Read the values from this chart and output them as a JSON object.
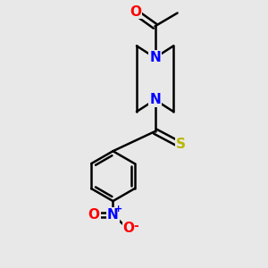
{
  "background_color": "#e8e8e8",
  "bond_color": "#000000",
  "N_color": "#0000ff",
  "O_color": "#ff0000",
  "S_color": "#b8b800",
  "line_width": 1.8,
  "figsize": [
    3.0,
    3.0
  ],
  "dpi": 100,
  "xlim": [
    0,
    10
  ],
  "ylim": [
    0,
    10
  ]
}
